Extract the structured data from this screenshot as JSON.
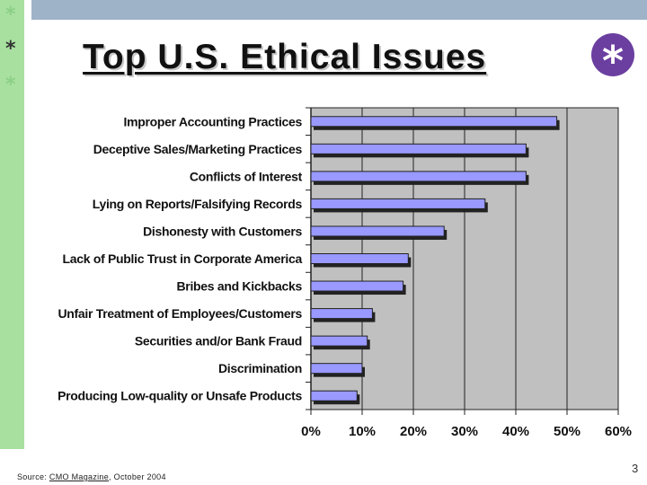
{
  "slide": {
    "title": "Top U.S. Ethical Issues",
    "page_number": "3",
    "source_prefix": "Source: ",
    "source_publication": "CMO Magazine",
    "source_date": ", October 2004",
    "bullet_glyph": "*",
    "colors": {
      "left_strip": "#a8e0a0",
      "top_bar": "#9fb3c8",
      "badge": "#6b3fa0"
    }
  },
  "chart_data": {
    "type": "bar",
    "orientation": "horizontal",
    "categories": [
      "Improper Accounting Practices",
      "Deceptive Sales/Marketing Practices",
      "Conflicts of Interest",
      "Lying on Reports/Falsifying Records",
      "Dishonesty with Customers",
      "Lack of Public Trust in Corporate America",
      "Bribes and Kickbacks",
      "Unfair Treatment of Employees/Customers",
      "Securities and/or Bank Fraud",
      "Discrimination",
      "Producing Low-quality or Unsafe Products"
    ],
    "values": [
      0.48,
      0.42,
      0.42,
      0.34,
      0.26,
      0.19,
      0.18,
      0.12,
      0.11,
      0.1,
      0.09
    ],
    "xlim": [
      0,
      0.6
    ],
    "x_ticks": [
      0,
      0.1,
      0.2,
      0.3,
      0.4,
      0.5,
      0.6
    ],
    "x_tick_labels": [
      "0%",
      "10%",
      "20%",
      "30%",
      "40%",
      "50%",
      "60%"
    ],
    "title": "",
    "xlabel": "",
    "ylabel": "",
    "grid": "vertical",
    "legend": "none",
    "colors": {
      "bar_fill": "#9999ff",
      "bar_stroke": "#222222",
      "plot_background": "#c0c0c0",
      "gridline": "#222222"
    }
  }
}
